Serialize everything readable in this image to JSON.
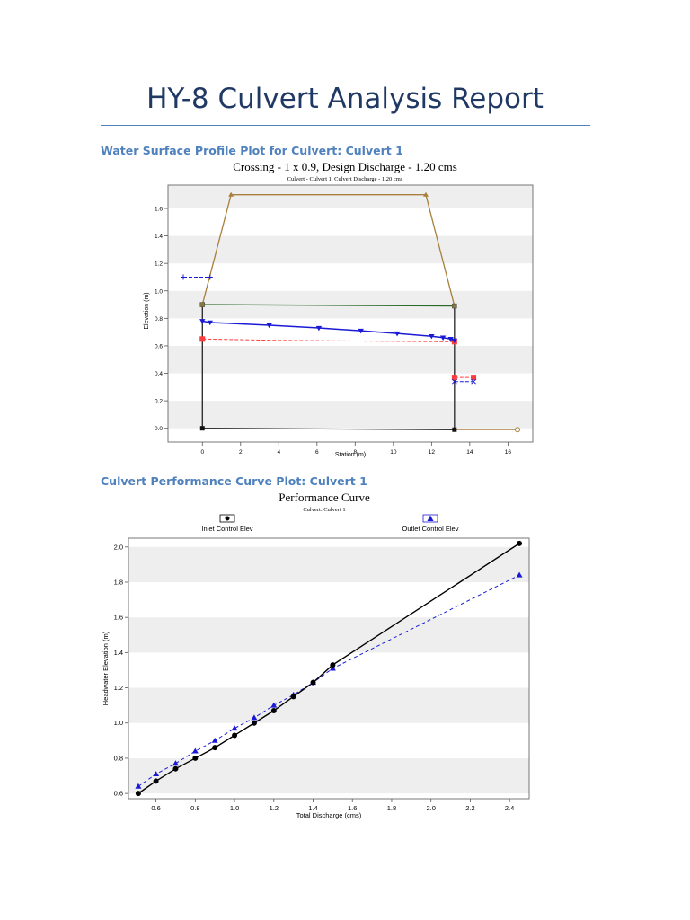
{
  "report_title": "HY-8 Culvert Analysis Report",
  "section1_heading": "Water Surface Profile Plot for Culvert: Culvert 1",
  "section2_heading": "Culvert Performance Curve Plot: Culvert 1",
  "colors": {
    "heading": "#4f81bd",
    "roadway": "#a87f3c",
    "culvert": "#111111",
    "water": "#1a1ad6",
    "critical": "#ff3b3b",
    "inlet": "#000000",
    "outlet": "#1a1ad6"
  },
  "chart_data": [
    {
      "type": "line",
      "title": "Crossing - 1 x 0.9, Design Discharge - 1.20 cms",
      "subtitle": "Culvert - Culvert 1, Culvert Discharge - 1.20 cms",
      "xlabel": "Station (m)",
      "ylabel": "Elevation (m)",
      "xlim": [
        -1.8,
        17.3
      ],
      "ylim": [
        -0.1,
        1.77
      ],
      "xticks": [
        0,
        2,
        4,
        6,
        8,
        10,
        12,
        14,
        16
      ],
      "yticks": [
        0,
        0.2,
        0.4,
        0.6,
        0.8,
        1.0,
        1.2,
        1.4,
        1.6
      ],
      "grid": "horizontal bands",
      "series": [
        {
          "role": "roadway",
          "x": [
            0,
            1.5,
            11.7,
            13.2
          ],
          "y": [
            0.9,
            1.7,
            1.7,
            0.89
          ]
        },
        {
          "role": "culvert_top",
          "x": [
            0,
            13.2
          ],
          "y": [
            0.9,
            0.89
          ]
        },
        {
          "role": "culvert_bottom",
          "x": [
            0,
            13.2
          ],
          "y": [
            0.0,
            -0.01
          ]
        },
        {
          "role": "inlet_wall",
          "x": [
            0,
            0
          ],
          "y": [
            0.0,
            0.9
          ]
        },
        {
          "role": "outlet_wall",
          "x": [
            13.2,
            13.2
          ],
          "y": [
            -0.01,
            0.89
          ]
        },
        {
          "role": "water_surface",
          "x": [
            0,
            0.4,
            3.5,
            6.1,
            8.3,
            10.2,
            12.0,
            12.6,
            13.0,
            13.2
          ],
          "y": [
            0.78,
            0.77,
            0.75,
            0.73,
            0.71,
            0.69,
            0.67,
            0.66,
            0.65,
            0.64
          ]
        },
        {
          "role": "critical_depth",
          "x": [
            0,
            4.0,
            13.2
          ],
          "y": [
            0.65,
            0.64,
            0.63
          ]
        },
        {
          "role": "headwater",
          "x": [
            -1.0,
            0.4
          ],
          "y": [
            1.1,
            1.1
          ]
        },
        {
          "role": "outlet_critical",
          "x": [
            13.2,
            14.2
          ],
          "y": [
            0.37,
            0.37
          ]
        },
        {
          "role": "tailwater",
          "x": [
            13.2,
            14.2
          ],
          "y": [
            0.34,
            0.34
          ]
        },
        {
          "role": "downstream_channel",
          "x": [
            13.2,
            16.5
          ],
          "y": [
            -0.01,
            -0.01
          ]
        }
      ]
    },
    {
      "type": "line",
      "title": "Performance Curve",
      "subtitle": "Culvert: Culvert 1",
      "xlabel": "Total Discharge (cms)",
      "ylabel": "Headwater Elevation (m)",
      "xlim": [
        0.46,
        2.5
      ],
      "ylim": [
        0.57,
        2.05
      ],
      "xticks": [
        0.6,
        0.8,
        1.0,
        1.2,
        1.4,
        1.6,
        1.8,
        2.0,
        2.2,
        2.4
      ],
      "yticks": [
        0.6,
        0.8,
        1.0,
        1.2,
        1.4,
        1.6,
        1.8,
        2.0
      ],
      "legend": "top",
      "grid": "horizontal bands",
      "series": [
        {
          "name": "Inlet Control Elev",
          "x": [
            0.51,
            0.6,
            0.7,
            0.8,
            0.9,
            1.0,
            1.1,
            1.2,
            1.3,
            1.4,
            1.5,
            2.45
          ],
          "y": [
            0.6,
            0.67,
            0.74,
            0.8,
            0.86,
            0.93,
            1.0,
            1.07,
            1.15,
            1.23,
            1.33,
            2.02
          ]
        },
        {
          "name": "Outlet Control Elev",
          "x": [
            0.51,
            0.6,
            0.7,
            0.8,
            0.9,
            1.0,
            1.1,
            1.2,
            1.3,
            1.4,
            1.5,
            2.45
          ],
          "y": [
            0.64,
            0.71,
            0.77,
            0.84,
            0.9,
            0.97,
            1.03,
            1.1,
            1.16,
            1.23,
            1.31,
            1.84
          ]
        }
      ]
    }
  ]
}
